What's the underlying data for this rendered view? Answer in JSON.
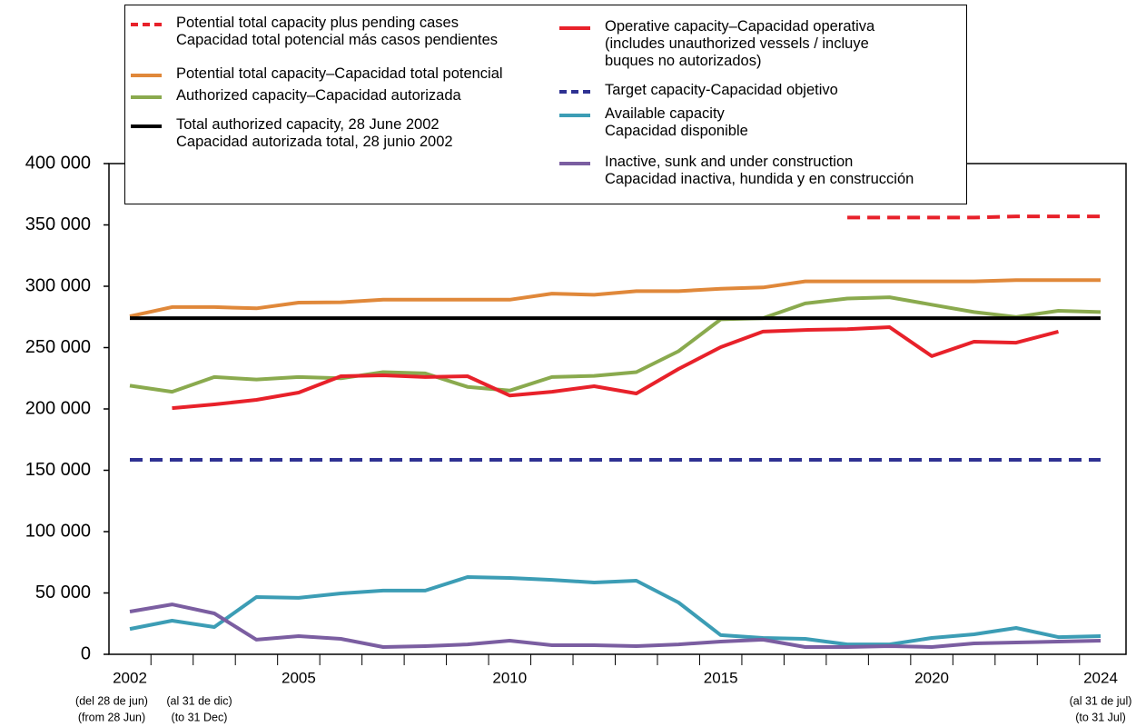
{
  "chart_data": {
    "type": "line",
    "categories": [
      "2002",
      null,
      null,
      null,
      "2005",
      null,
      null,
      null,
      null,
      "2010",
      null,
      null,
      null,
      null,
      "2015",
      null,
      null,
      null,
      null,
      "2020",
      null,
      null,
      null,
      "2024"
    ],
    "category_notes_es": [
      "(del 28 de jun)",
      "(al 31 de dic)",
      null,
      null,
      null,
      null,
      null,
      null,
      null,
      null,
      null,
      null,
      null,
      null,
      null,
      null,
      null,
      null,
      null,
      null,
      null,
      null,
      null,
      "(al 31 de jul)"
    ],
    "category_notes_en": [
      "(from 28 Jun)",
      "(to 31 Dec)",
      null,
      null,
      null,
      null,
      null,
      null,
      null,
      null,
      null,
      null,
      null,
      null,
      null,
      null,
      null,
      null,
      null,
      null,
      null,
      null,
      null,
      "(to 31 Jul)"
    ],
    "ylim": [
      0,
      400000
    ],
    "yticks": [
      0,
      {
        "value": 50000,
        "label": "50 000"
      },
      {
        "value": 100000,
        "label": "100 000"
      },
      {
        "value": 150000,
        "label": "150 000"
      },
      {
        "value": 200000,
        "label": "200 000"
      },
      {
        "value": 250000,
        "label": "250 000"
      },
      {
        "value": 300000,
        "label": "300 000"
      },
      {
        "value": 350000,
        "label": "350 000"
      },
      {
        "value": 400000,
        "label": "400 000"
      }
    ],
    "series": [
      {
        "name": "Potential total capacity plus pending cases\nCapacidad total potencial más casos pendientes",
        "color": "#e8212a",
        "dashed": true,
        "values": [
          null,
          null,
          null,
          null,
          null,
          null,
          null,
          null,
          null,
          null,
          null,
          null,
          null,
          null,
          null,
          null,
          null,
          356000,
          356000,
          356000,
          356000,
          357000,
          357000,
          357000
        ]
      },
      {
        "name": "Potential total capacity–Capacidad total potencial",
        "color": "#e0883a",
        "dashed": false,
        "values": [
          275500,
          283000,
          283000,
          282000,
          286700,
          287000,
          289000,
          289000,
          289000,
          289000,
          294000,
          293000,
          296000,
          296000,
          298000,
          299000,
          304000,
          304000,
          304000,
          304000,
          304000,
          305000,
          305000,
          305000
        ]
      },
      {
        "name": "Authorized capacity–Capacidad autorizada",
        "color": "#8aaa4e",
        "dashed": false,
        "values": [
          219000,
          214000,
          226000,
          224000,
          226000,
          225000,
          230000,
          229000,
          218000,
          215000,
          226000,
          227000,
          230000,
          247000,
          273000,
          274000,
          286000,
          290000,
          291000,
          285000,
          279000,
          275000,
          280000,
          279000
        ]
      },
      {
        "name": "Total authorized capacity, 28 June 2002\nCapacidad autorizada total, 28 junio 2002",
        "color": "#000000",
        "dashed": false,
        "values": [
          274000,
          274000,
          274000,
          274000,
          274000,
          274000,
          274000,
          274000,
          274000,
          274000,
          274000,
          274000,
          274000,
          274000,
          274000,
          274000,
          274000,
          274000,
          274000,
          274000,
          274000,
          274000,
          274000,
          274000
        ]
      },
      {
        "name": "Operative capacity–Capacidad operativa\n(includes unauthorized vessels / incluye\nbuques no autorizados)",
        "color": "#e8212a",
        "dashed": false,
        "values": [
          null,
          200700,
          203700,
          207400,
          213300,
          226700,
          227400,
          226000,
          226700,
          211000,
          214000,
          218500,
          212600,
          232600,
          250400,
          263000,
          264400,
          265000,
          266700,
          243000,
          254800,
          254000,
          263000,
          null
        ]
      },
      {
        "name": "Target capacity-Capacidad objetivo",
        "color": "#2e3192",
        "dashed": true,
        "values": [
          158500,
          158500,
          158500,
          158500,
          158500,
          158500,
          158500,
          158500,
          158500,
          158500,
          158500,
          158500,
          158500,
          158500,
          158500,
          158500,
          158500,
          158500,
          158500,
          158500,
          158500,
          158500,
          158500,
          158500
        ]
      },
      {
        "name": "Available capacity\nCapacidad disponible",
        "color": "#3c9db5",
        "dashed": false,
        "values": [
          20700,
          27400,
          22200,
          46700,
          46000,
          49600,
          51900,
          51900,
          63000,
          62200,
          60700,
          58500,
          60000,
          42200,
          15600,
          13300,
          12600,
          8100,
          8100,
          13300,
          16300,
          21500,
          14000,
          14800
        ]
      },
      {
        "name": "Inactive, sunk and under construction\nCapacidad inactiva, hundida y en construcción",
        "color": "#7b5ea1",
        "dashed": false,
        "values": [
          34800,
          40700,
          33300,
          11900,
          14800,
          12600,
          5900,
          6700,
          8100,
          11100,
          7400,
          7400,
          6700,
          8100,
          10400,
          11900,
          5900,
          5900,
          6700,
          5900,
          8900,
          9600,
          10400,
          11100
        ]
      }
    ]
  }
}
